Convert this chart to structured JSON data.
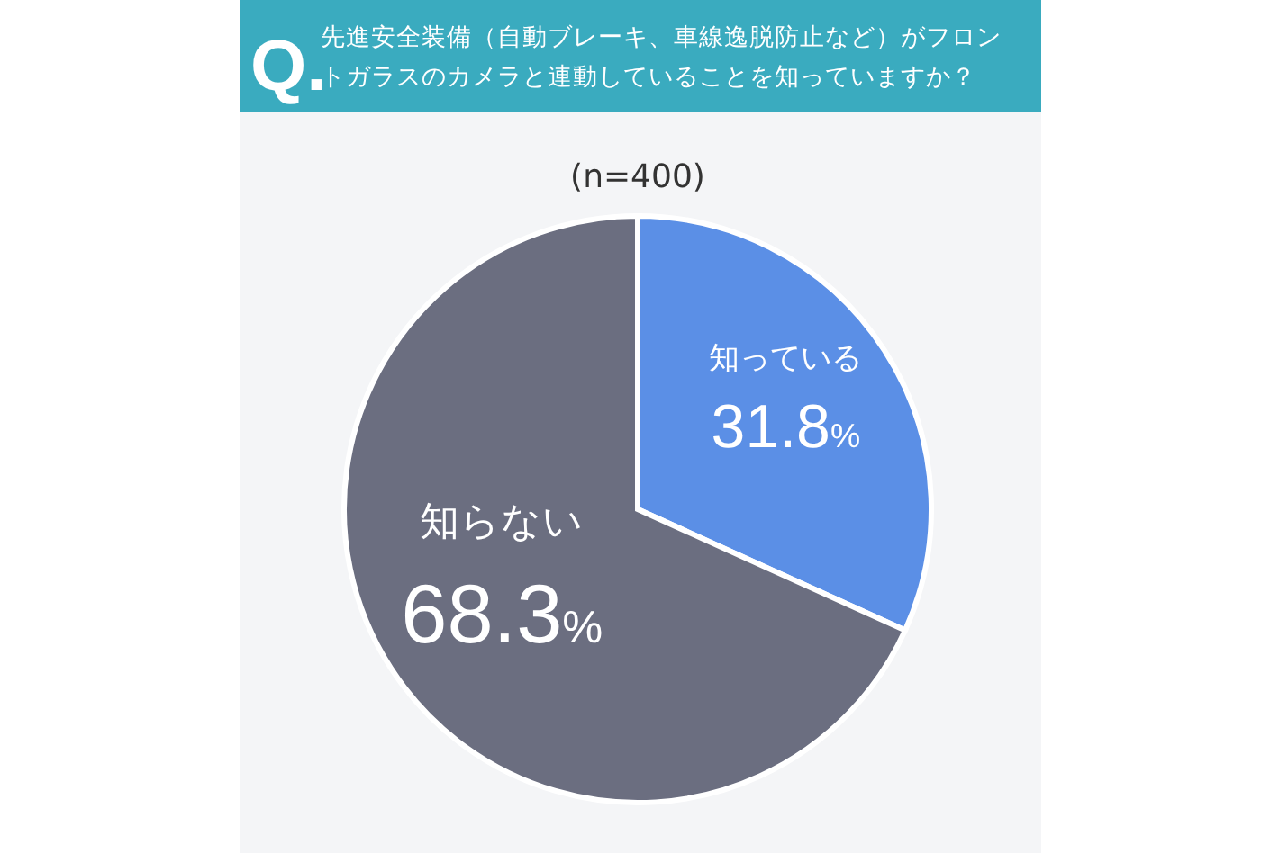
{
  "chart_data": {
    "type": "pie",
    "title": "先進安全装備（自動ブレーキ、車線逸脱防止など）がフロントガラスのカメラと連動していることを知っていますか？",
    "subtitle": "(n=400)",
    "annotations": [
      "Q."
    ],
    "categories": [
      "知っている",
      "知らない"
    ],
    "values": [
      31.8,
      68.3
    ],
    "colors": [
      "#5b8fe6",
      "#6b6e80"
    ],
    "value_labels": [
      "31.8%",
      "68.3%"
    ]
  }
}
